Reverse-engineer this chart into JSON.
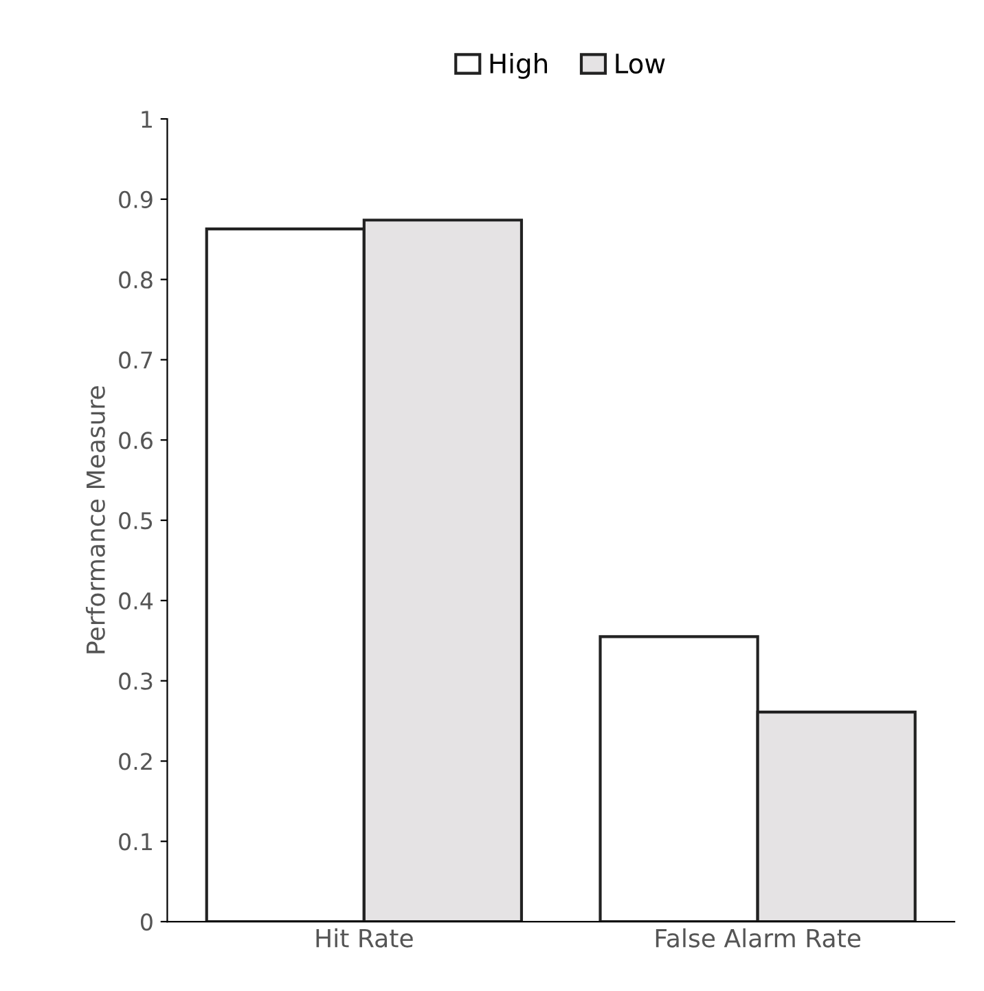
{
  "chart_data": {
    "type": "bar",
    "ylabel": "Performance Measure",
    "categories": [
      "Hit Rate",
      "False Alarm Rate"
    ],
    "series": [
      {
        "name": "High",
        "color": "#ffffff",
        "values": [
          0.863,
          0.355
        ]
      },
      {
        "name": "Low",
        "color": "#e5e3e4",
        "values": [
          0.874,
          0.261
        ]
      }
    ],
    "ylim": [
      0,
      1
    ],
    "yticks": [
      0,
      0.1,
      0.2,
      0.3,
      0.4,
      0.5,
      0.6,
      0.7,
      0.8,
      0.9,
      1
    ],
    "grid": false,
    "legend": "top"
  }
}
